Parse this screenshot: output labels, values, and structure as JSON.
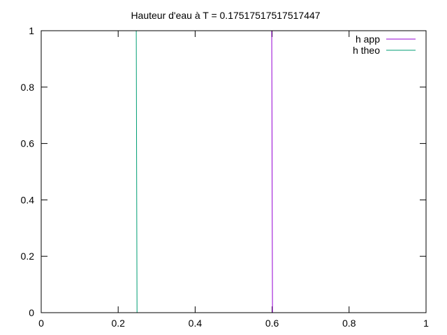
{
  "chart_data": {
    "type": "line",
    "title": "Hauteur d'eau à T =   0.17517517517517447",
    "xlabel": "",
    "ylabel": "",
    "xlim": [
      0,
      1
    ],
    "ylim": [
      0,
      1
    ],
    "x_ticks": [
      0,
      0.2,
      0.4,
      0.6,
      0.8,
      1
    ],
    "x_tick_labels": [
      "0",
      "0.2",
      "0.4",
      "0.6",
      "0.8",
      "1"
    ],
    "y_ticks": [
      0,
      0.2,
      0.4,
      0.6,
      0.8,
      1
    ],
    "y_tick_labels": [
      "0",
      "0.2",
      "0.4",
      "0.6",
      "0.8",
      "1"
    ],
    "grid": false,
    "legend_position": "top-right",
    "series": [
      {
        "name": "h app",
        "color": "#9400d3",
        "points": [
          [
            0.599,
            1
          ],
          [
            0.6,
            0.5
          ],
          [
            0.601,
            0
          ]
        ]
      },
      {
        "name": "h theo",
        "color": "#009e73",
        "points": [
          [
            0.247,
            1
          ],
          [
            0.248,
            0.5
          ],
          [
            0.249,
            0
          ]
        ]
      }
    ]
  }
}
